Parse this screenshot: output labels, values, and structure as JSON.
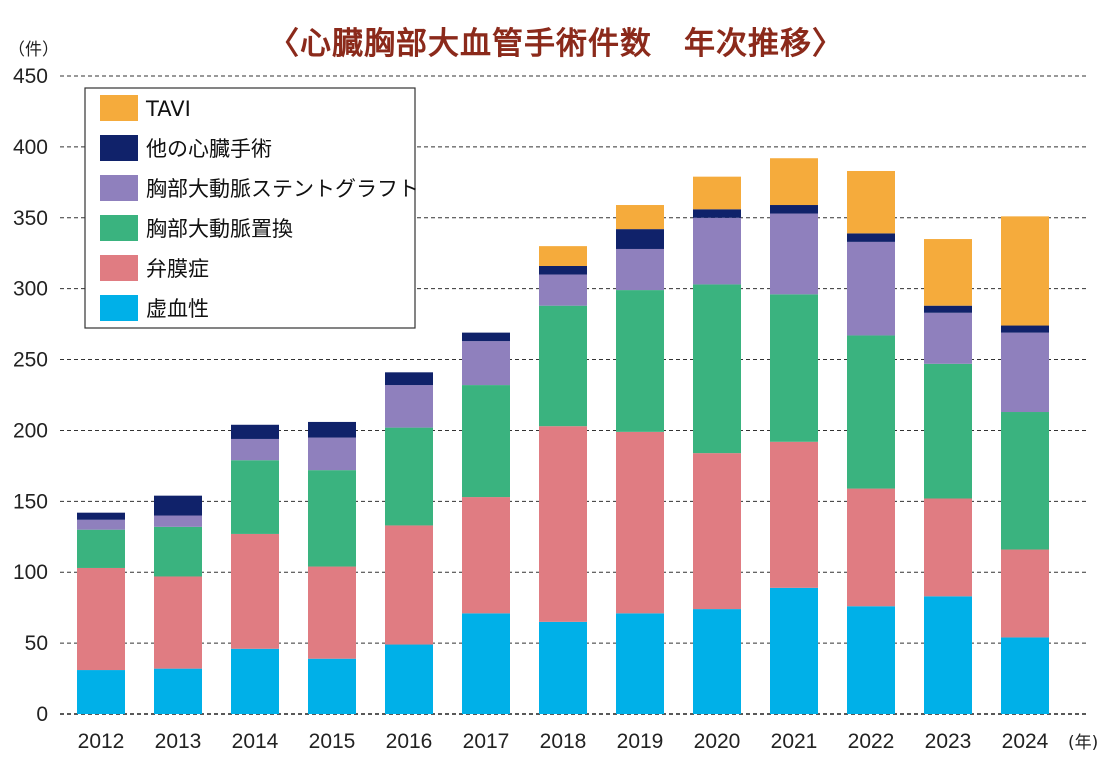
{
  "chart_data": {
    "type": "bar",
    "stacked": true,
    "title": "〈心臓胸部大血管手術件数　年次推移〉",
    "ylabel": "（件）",
    "xlabel": "(年)",
    "ylim": [
      0,
      450
    ],
    "yticks": [
      0,
      50,
      100,
      150,
      200,
      250,
      300,
      350,
      400,
      450
    ],
    "grid": true,
    "legend_position": "top-left",
    "categories": [
      "2012",
      "2013",
      "2014",
      "2015",
      "2016",
      "2017",
      "2018",
      "2019",
      "2020",
      "2021",
      "2022",
      "2023",
      "2024"
    ],
    "series": [
      {
        "name": "虚血性",
        "color": "#00b0e8",
        "values": [
          31,
          32,
          46,
          39,
          49,
          71,
          65,
          71,
          74,
          89,
          76,
          83,
          54
        ]
      },
      {
        "name": "弁膜症",
        "color": "#e07c82",
        "values": [
          72,
          65,
          81,
          65,
          84,
          82,
          138,
          128,
          110,
          103,
          83,
          69,
          62
        ]
      },
      {
        "name": "胸部大動脈置換",
        "color": "#3ab37f",
        "values": [
          27,
          35,
          52,
          68,
          69,
          79,
          85,
          100,
          119,
          104,
          108,
          95,
          97
        ]
      },
      {
        "name": "胸部大動脈ステントグラフト",
        "color": "#8f80bd",
        "values": [
          7,
          8,
          15,
          23,
          30,
          31,
          22,
          29,
          47,
          57,
          66,
          36,
          56
        ]
      },
      {
        "name": "他の心臓手術",
        "color": "#10226a",
        "values": [
          5,
          14,
          10,
          11,
          9,
          6,
          6,
          14,
          6,
          6,
          6,
          5,
          5
        ]
      },
      {
        "name": "TAVI",
        "color": "#f5ab3c",
        "values": [
          0,
          0,
          0,
          0,
          0,
          0,
          14,
          17,
          23,
          33,
          44,
          47,
          77
        ]
      }
    ]
  }
}
